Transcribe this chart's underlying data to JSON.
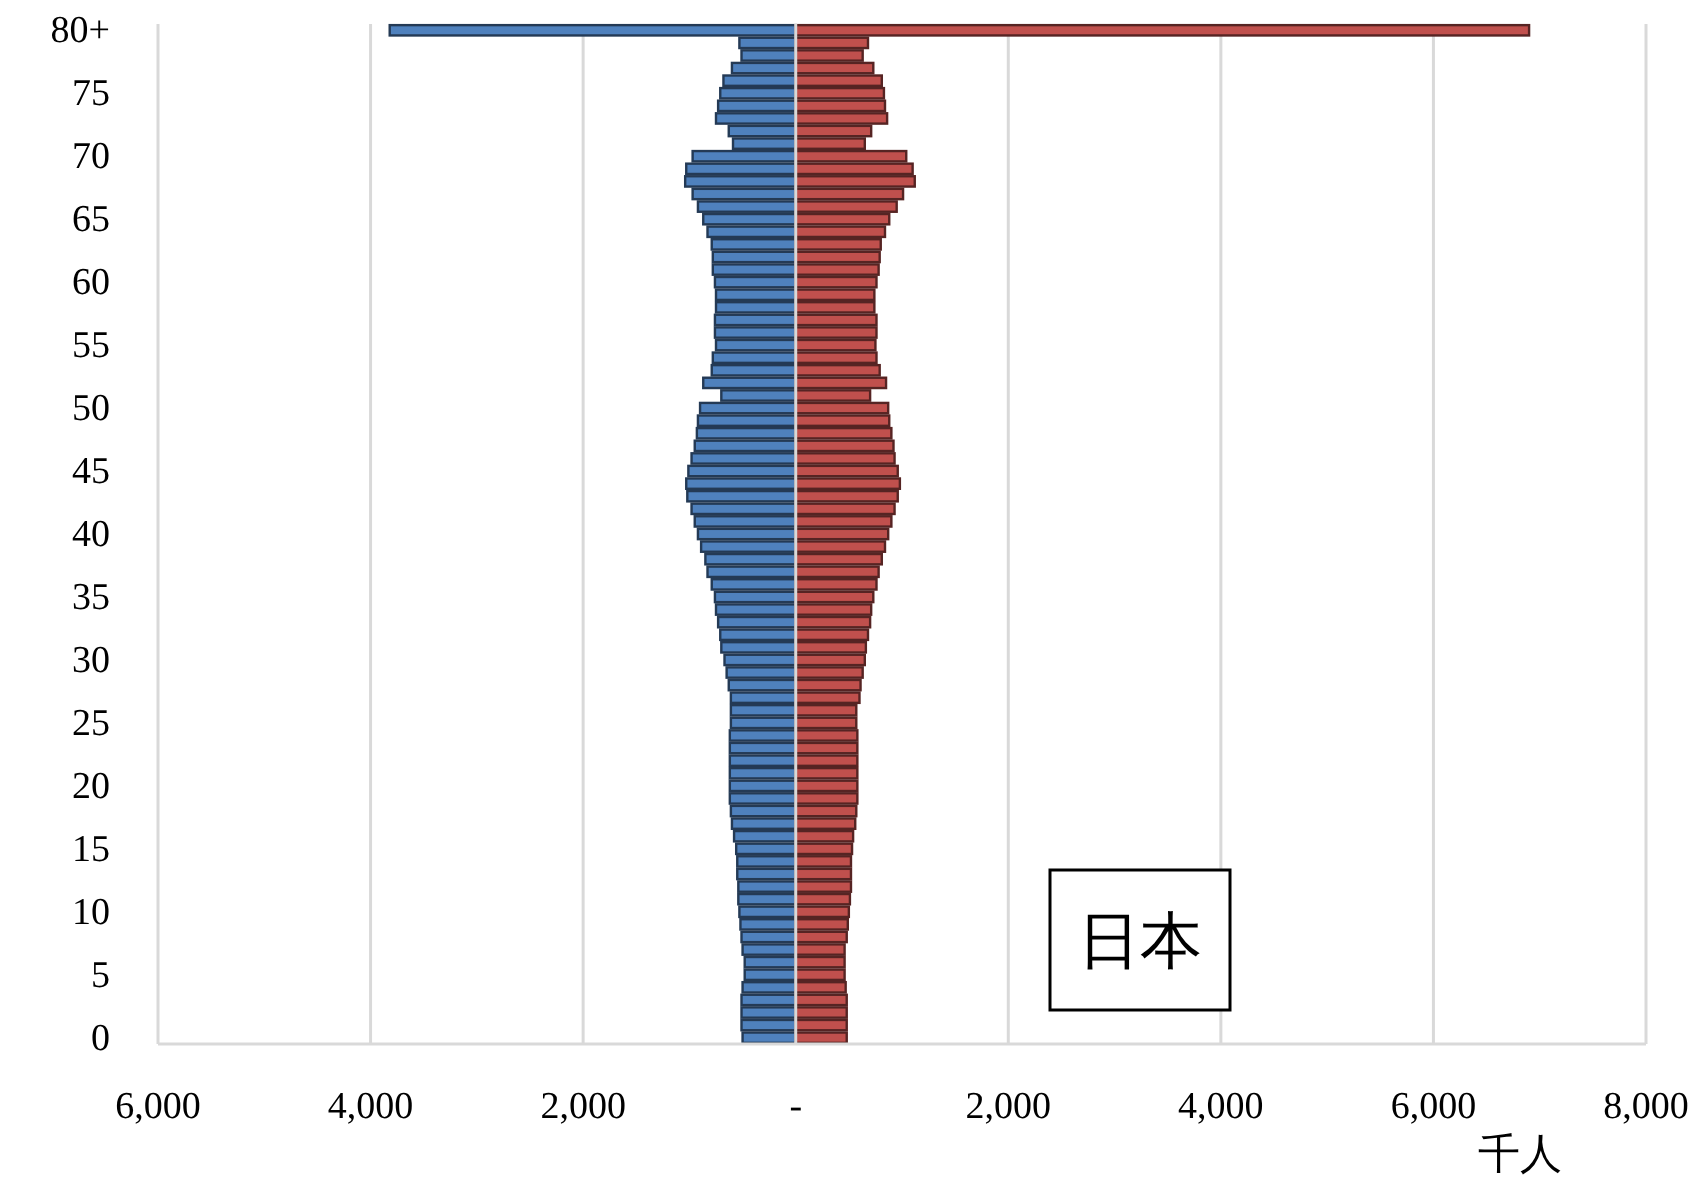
{
  "chart_data": {
    "type": "bar",
    "orientation": "horizontal",
    "stacked": true,
    "grid": "x",
    "categories": [
      "80+",
      null,
      null,
      null,
      null,
      "75",
      null,
      null,
      null,
      null,
      "70",
      null,
      null,
      null,
      null,
      "65",
      null,
      null,
      null,
      null,
      "60",
      null,
      null,
      null,
      null,
      "55",
      null,
      null,
      null,
      null,
      "50",
      null,
      null,
      null,
      null,
      "45",
      null,
      null,
      null,
      null,
      "40",
      null,
      null,
      null,
      null,
      "35",
      null,
      null,
      null,
      null,
      "30",
      null,
      null,
      null,
      null,
      "25",
      null,
      null,
      null,
      null,
      "20",
      null,
      null,
      null,
      null,
      "15",
      null,
      null,
      null,
      null,
      "10",
      null,
      null,
      null,
      null,
      "5",
      null,
      null,
      null,
      null,
      "0"
    ],
    "series": [
      {
        "color": "#4f81bd",
        "values": [
          -3820,
          -530,
          -510,
          -600,
          -680,
          -710,
          -730,
          -750,
          -630,
          -590,
          -970,
          -1030,
          -1040,
          -970,
          -920,
          -870,
          -830,
          -790,
          -780,
          -780,
          -760,
          -750,
          -750,
          -760,
          -760,
          -750,
          -780,
          -790,
          -870,
          -700,
          -900,
          -920,
          -930,
          -950,
          -980,
          -1010,
          -1030,
          -1020,
          -980,
          -950,
          -920,
          -890,
          -850,
          -830,
          -790,
          -760,
          -750,
          -730,
          -710,
          -700,
          -670,
          -650,
          -630,
          -610,
          -610,
          -610,
          -620,
          -620,
          -620,
          -620,
          -620,
          -620,
          -610,
          -600,
          -580,
          -560,
          -550,
          -550,
          -540,
          -540,
          -530,
          -520,
          -510,
          -500,
          -480,
          -480,
          -500,
          -510,
          -510,
          -510,
          -500
        ]
      },
      {
        "color": "#c0504d",
        "values": [
          6900,
          680,
          630,
          730,
          810,
          830,
          840,
          860,
          710,
          650,
          1040,
          1100,
          1120,
          1010,
          950,
          880,
          840,
          800,
          790,
          780,
          760,
          740,
          740,
          760,
          760,
          750,
          760,
          790,
          850,
          700,
          870,
          880,
          900,
          920,
          930,
          960,
          980,
          960,
          930,
          900,
          870,
          840,
          810,
          780,
          760,
          730,
          710,
          700,
          680,
          660,
          650,
          630,
          610,
          600,
          570,
          570,
          580,
          580,
          580,
          580,
          580,
          580,
          570,
          560,
          540,
          530,
          520,
          520,
          520,
          510,
          500,
          490,
          480,
          460,
          460,
          460,
          470,
          480,
          480,
          480,
          480
        ]
      }
    ],
    "xlim": [
      -6000,
      8000
    ],
    "xticks": [
      {
        "value": -6000,
        "label": "6,000"
      },
      {
        "value": -4000,
        "label": "4,000"
      },
      {
        "value": -2000,
        "label": "2,000"
      },
      {
        "value": 0,
        "label": "-"
      },
      {
        "value": 2000,
        "label": "2,000"
      },
      {
        "value": 4000,
        "label": "4,000"
      },
      {
        "value": 6000,
        "label": "6,000"
      },
      {
        "value": 8000,
        "label": "8,000"
      }
    ],
    "xlabel": "千人",
    "annotations": [
      "日本"
    ]
  }
}
